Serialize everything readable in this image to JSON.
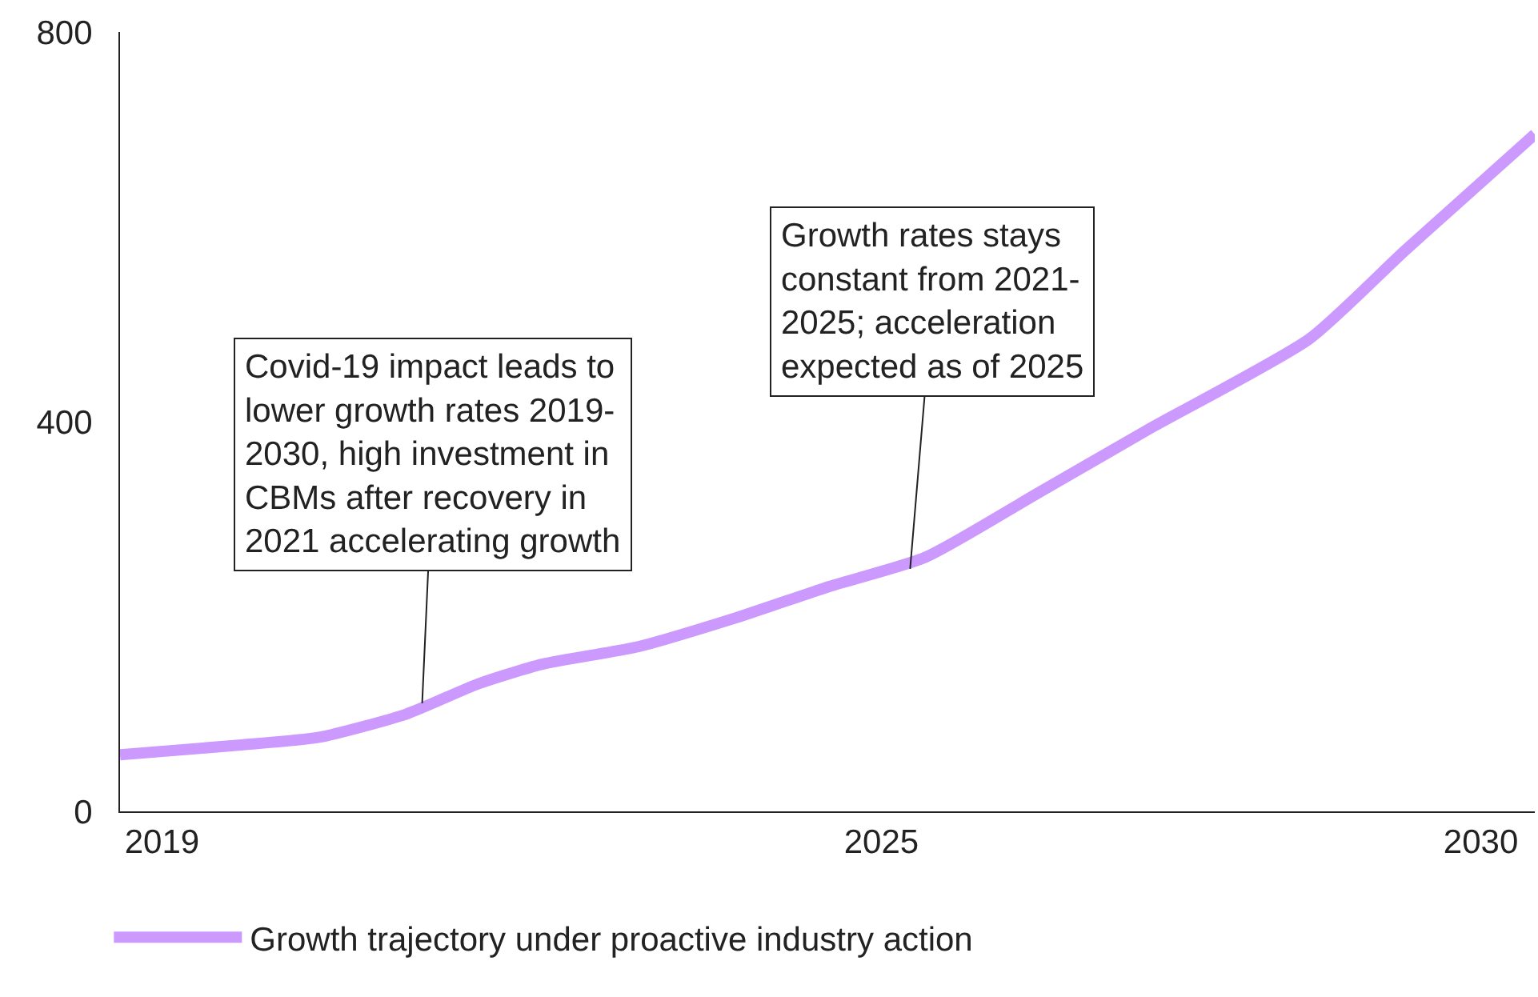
{
  "chart_data": {
    "type": "line",
    "x": [
      2018.65,
      2019.64,
      2020.31,
      2021.04,
      2021.64,
      2022.17,
      2022.97,
      2023.77,
      2024.57,
      2025.37,
      2026.31,
      2027.24,
      2028.57,
      2029.37,
      2030.45
    ],
    "series": [
      {
        "name": "Growth trajectory under proactive industry action",
        "color": "#cc99ff",
        "values": [
          58,
          68,
          76,
          100,
          131,
          151,
          169,
          198,
          231,
          261,
          327,
          393,
          485,
          576,
          695
        ]
      }
    ],
    "xlim": [
      2018.65,
      2030.45
    ],
    "xticks": [
      2019,
      2025,
      2030
    ],
    "ylim": [
      0,
      800
    ],
    "yticks": [
      0,
      400,
      800
    ],
    "legend": "bottom",
    "marker": "none",
    "line_style": "solid",
    "annotations": [
      {
        "text": "Covid-19 impact leads to\nlower growth rates 2019-\n2030, high investment in\nCBMs after recovery in\n2021 accelerating growth",
        "x": 2021.17,
        "y": 111
      },
      {
        "text": "Growth rates stays\nconstant from 2021-\n2025; acceleration\nexpected as of 2025",
        "x": 2025.24,
        "y": 249
      }
    ]
  }
}
